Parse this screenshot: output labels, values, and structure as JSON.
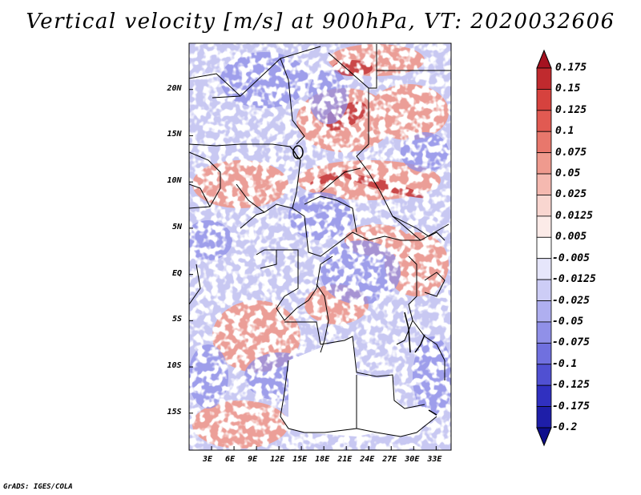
{
  "title": "Vertical velocity [m/s] at 900hPa, VT: 2020032606",
  "footer": "GrADS: IGES/COLA",
  "map": {
    "lon_range": [
      0,
      35
    ],
    "lat_range": [
      -19,
      25
    ],
    "x_ticks": [
      "3E",
      "6E",
      "9E",
      "12E",
      "15E",
      "18E",
      "21E",
      "24E",
      "27E",
      "30E",
      "33E"
    ],
    "y_ticks": [
      "20N",
      "15N",
      "10N",
      "5N",
      "EQ",
      "5S",
      "10S",
      "15S"
    ]
  },
  "colorbar": {
    "levels": [
      "0.175",
      "0.15",
      "0.125",
      "0.1",
      "0.075",
      "0.05",
      "0.025",
      "0.0125",
      "0.005",
      "-0.005",
      "-0.0125",
      "-0.025",
      "-0.05",
      "-0.075",
      "-0.1",
      "-0.125",
      "-0.175",
      "-0.2"
    ],
    "colors": [
      "#a51220",
      "#c02a2e",
      "#d6423e",
      "#e15a52",
      "#e8776c",
      "#ef9a8e",
      "#f5b9b0",
      "#f9d6d0",
      "#fcebe8",
      "#ffffff",
      "#e6e6fb",
      "#cdcdf6",
      "#afaff0",
      "#9090e8",
      "#7070df",
      "#5050d2",
      "#3030c0",
      "#1e1ea8",
      "#0e0e8c"
    ]
  },
  "legend_note": ""
}
